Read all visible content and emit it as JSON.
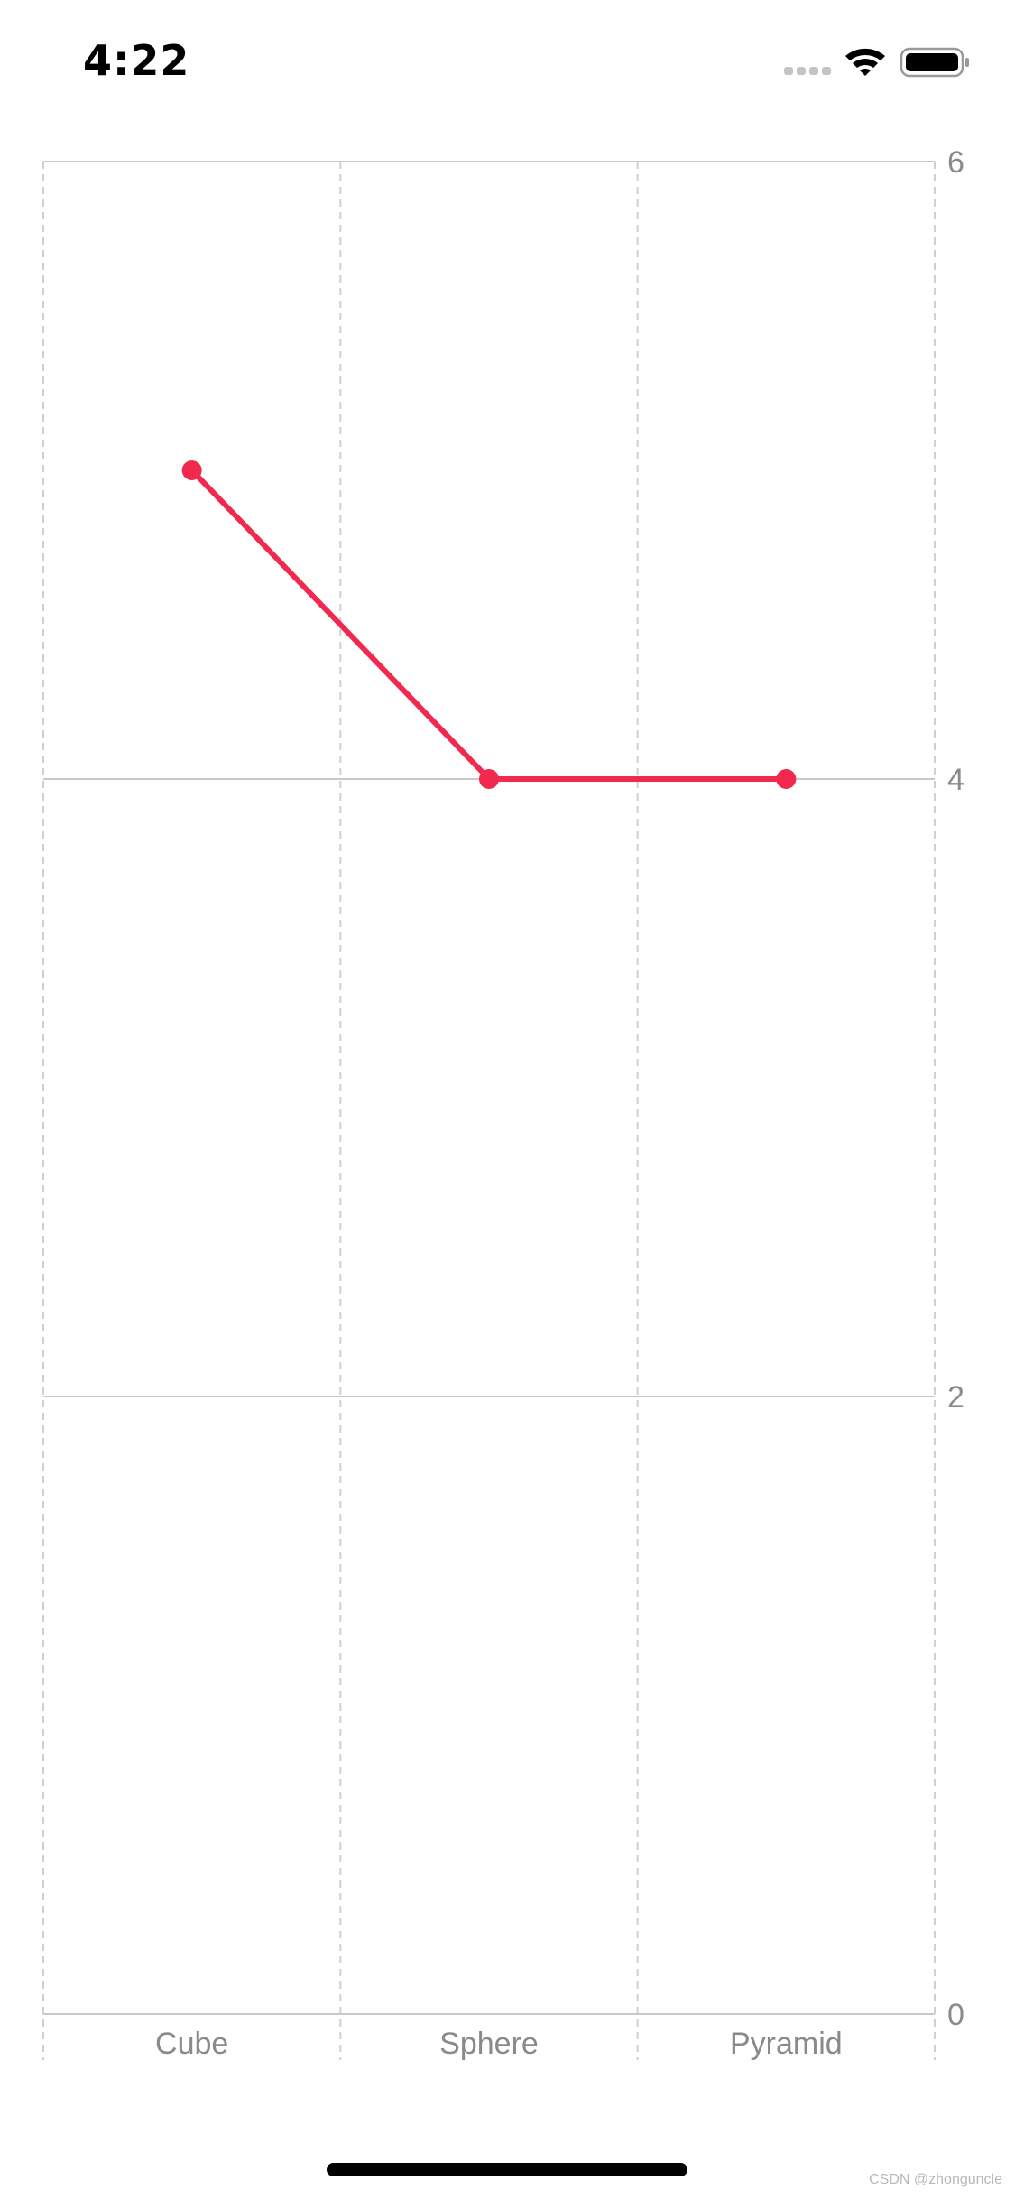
{
  "status_bar": {
    "time": "4:22",
    "icons": [
      "signal-dots-icon",
      "wifi-icon",
      "battery-icon"
    ]
  },
  "chart_data": {
    "type": "line",
    "categories": [
      "Cube",
      "Sphere",
      "Pyramid"
    ],
    "series": [
      {
        "values": [
          5,
          4,
          4
        ],
        "color": "#f2294e"
      }
    ],
    "y_ticks": [
      0,
      2,
      4,
      6
    ],
    "ylim": [
      0,
      6
    ],
    "y_axis_side": "right",
    "grid": true,
    "title": "",
    "xlabel": "",
    "ylabel": ""
  },
  "watermark": "CSDN @zhonguncle"
}
